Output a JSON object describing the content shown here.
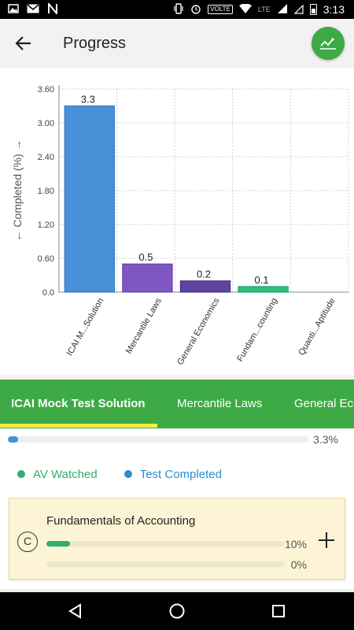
{
  "status_bar": {
    "left_icons": [
      "gallery-icon",
      "gmail-icon",
      "n-app-icon"
    ],
    "volte": "VOLTE",
    "lte": "LTE",
    "time": "3:13"
  },
  "header": {
    "title": "Progress",
    "back_icon": "arrow-left-icon",
    "action_icon": "trend-chart-icon"
  },
  "chart_data": {
    "type": "bar",
    "ylabel": "← Completed (%) →",
    "ylim": [
      0,
      3.6
    ],
    "yticks": [
      "0.0",
      "0.60",
      "1.20",
      "1.80",
      "2.40",
      "3.00",
      "3.60"
    ],
    "categories": [
      "ICAI M...Solution",
      "Mercantile Laws",
      "General Economics",
      "Fundam...counting",
      "Quanti...Aptitude"
    ],
    "values": [
      3.3,
      0.5,
      0.2,
      0.1,
      0
    ],
    "value_labels": [
      "3.3",
      "0.5",
      "0.2",
      "0.1",
      ""
    ],
    "colors": [
      "#4a90d9",
      "#7e57c2",
      "#5e45a0",
      "#2fbf7a",
      "#9e9e9e"
    ],
    "grid": true
  },
  "tabs": {
    "items": [
      {
        "label": "ICAI Mock Test Solution",
        "active": true
      },
      {
        "label": "Mercantile Laws",
        "active": false
      },
      {
        "label": "General Economics",
        "active": false
      }
    ],
    "accent": "#3daa45",
    "indicator_color": "#ffeb3b"
  },
  "overall": {
    "value_label": "3.3%",
    "fraction": 0.033,
    "color": "#4a90d9"
  },
  "legend": {
    "items": [
      {
        "label": "AV Watched",
        "color": "#2fae6d"
      },
      {
        "label": "Test Completed",
        "color": "#2a8fd0"
      }
    ]
  },
  "card": {
    "badge": "C",
    "title": "Fundamentals of Accounting",
    "av_watched": {
      "value_label": "10%",
      "fraction": 0.1
    },
    "test_completed": {
      "value_label": "0%",
      "fraction": 0
    },
    "expand_icon": "plus-icon"
  },
  "nav_bar": {
    "buttons": [
      "back-triangle-icon",
      "home-circle-icon",
      "recents-square-icon"
    ]
  }
}
